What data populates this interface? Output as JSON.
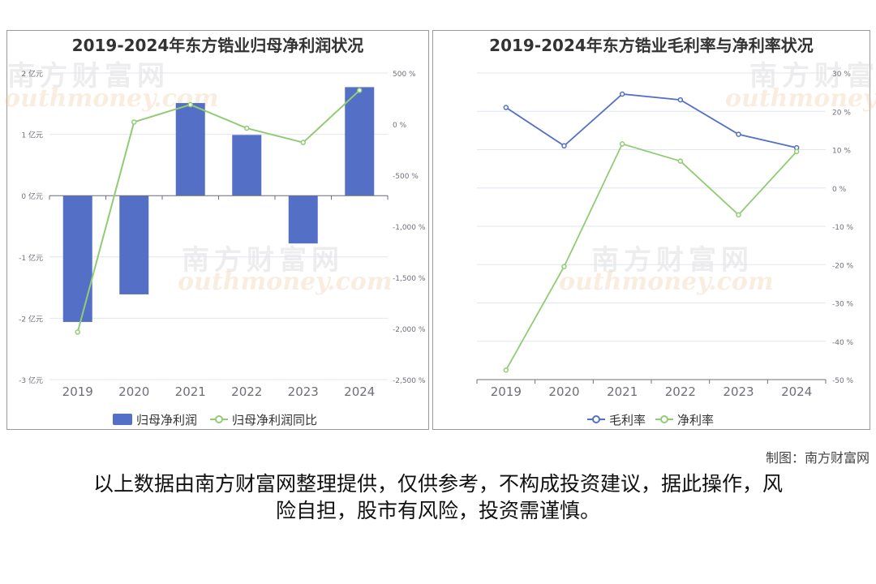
{
  "left_chart": {
    "title": "2019-2024年东方锆业归母净利润状况",
    "left_axis_ticks": [
      "2 亿元",
      "1 亿元",
      "0 亿元",
      "-1 亿元",
      "-2 亿元",
      "-3 亿元"
    ],
    "right_axis_ticks": [
      "500 %",
      "0 %",
      "-500 %",
      "-1,000 %",
      "-1,500 %",
      "-2,000 %",
      "-2,500 %"
    ],
    "x_ticks": [
      "2019",
      "2020",
      "2021",
      "2022",
      "2023",
      "2024"
    ],
    "legend": {
      "bar": "归母净利润",
      "line": "归母净利润同比"
    }
  },
  "right_chart": {
    "title": "2019-2024年东方锆业毛利率与净利率状况",
    "right_axis_ticks": [
      "30 %",
      "20 %",
      "10 %",
      "0 %",
      "-10 %",
      "-20 %",
      "-30 %",
      "-40 %",
      "-50 %"
    ],
    "x_ticks": [
      "2019",
      "2020",
      "2021",
      "2022",
      "2023",
      "2024"
    ],
    "legend": {
      "gross": "毛利率",
      "net": "净利率"
    }
  },
  "watermark": {
    "cn": "南方财富网",
    "en": "southmoney.com"
  },
  "credit": "制图：南方财富网",
  "disclaimer_line1": "以上数据由南方财富网整理提供，仅供参考，不构成投资建议，据此操作，风",
  "disclaimer_line2": "险自担，股市有风险，投资需谨慎。",
  "colors": {
    "bar": "#5470c6",
    "line_green": "#91cc75",
    "line_blue": "#5470c6",
    "axis": "#6e7079",
    "grid": "#e0e6f1"
  },
  "chart_data": [
    {
      "type": "bar",
      "title": "2019-2024年东方锆业归母净利润状况",
      "categories": [
        "2019",
        "2020",
        "2021",
        "2022",
        "2023",
        "2024"
      ],
      "series": [
        {
          "name": "归母净利润",
          "type": "bar",
          "axis": "left",
          "unit": "亿元",
          "values": [
            -2.06,
            -1.61,
            1.51,
            0.99,
            -0.78,
            1.77
          ]
        },
        {
          "name": "归母净利润同比",
          "type": "line",
          "axis": "right",
          "unit": "%",
          "values": [
            -2035,
            20,
            190,
            -40,
            -180,
            330
          ]
        }
      ],
      "left_ylim": [
        -3,
        2
      ],
      "right_ylim": [
        -2500,
        500
      ],
      "legend_position": "bottom-center",
      "grid": true
    },
    {
      "type": "line",
      "title": "2019-2024年东方锆业毛利率与净利率状况",
      "categories": [
        "2019",
        "2020",
        "2021",
        "2022",
        "2023",
        "2024"
      ],
      "series": [
        {
          "name": "毛利率",
          "values": [
            21,
            11,
            24.5,
            23,
            14,
            10.5
          ]
        },
        {
          "name": "净利率",
          "values": [
            -47.5,
            -20.5,
            11.5,
            7,
            -7,
            9.5
          ]
        }
      ],
      "y_unit": "%",
      "ylim": [
        -50,
        30
      ],
      "legend_position": "bottom-center",
      "grid": true
    }
  ]
}
